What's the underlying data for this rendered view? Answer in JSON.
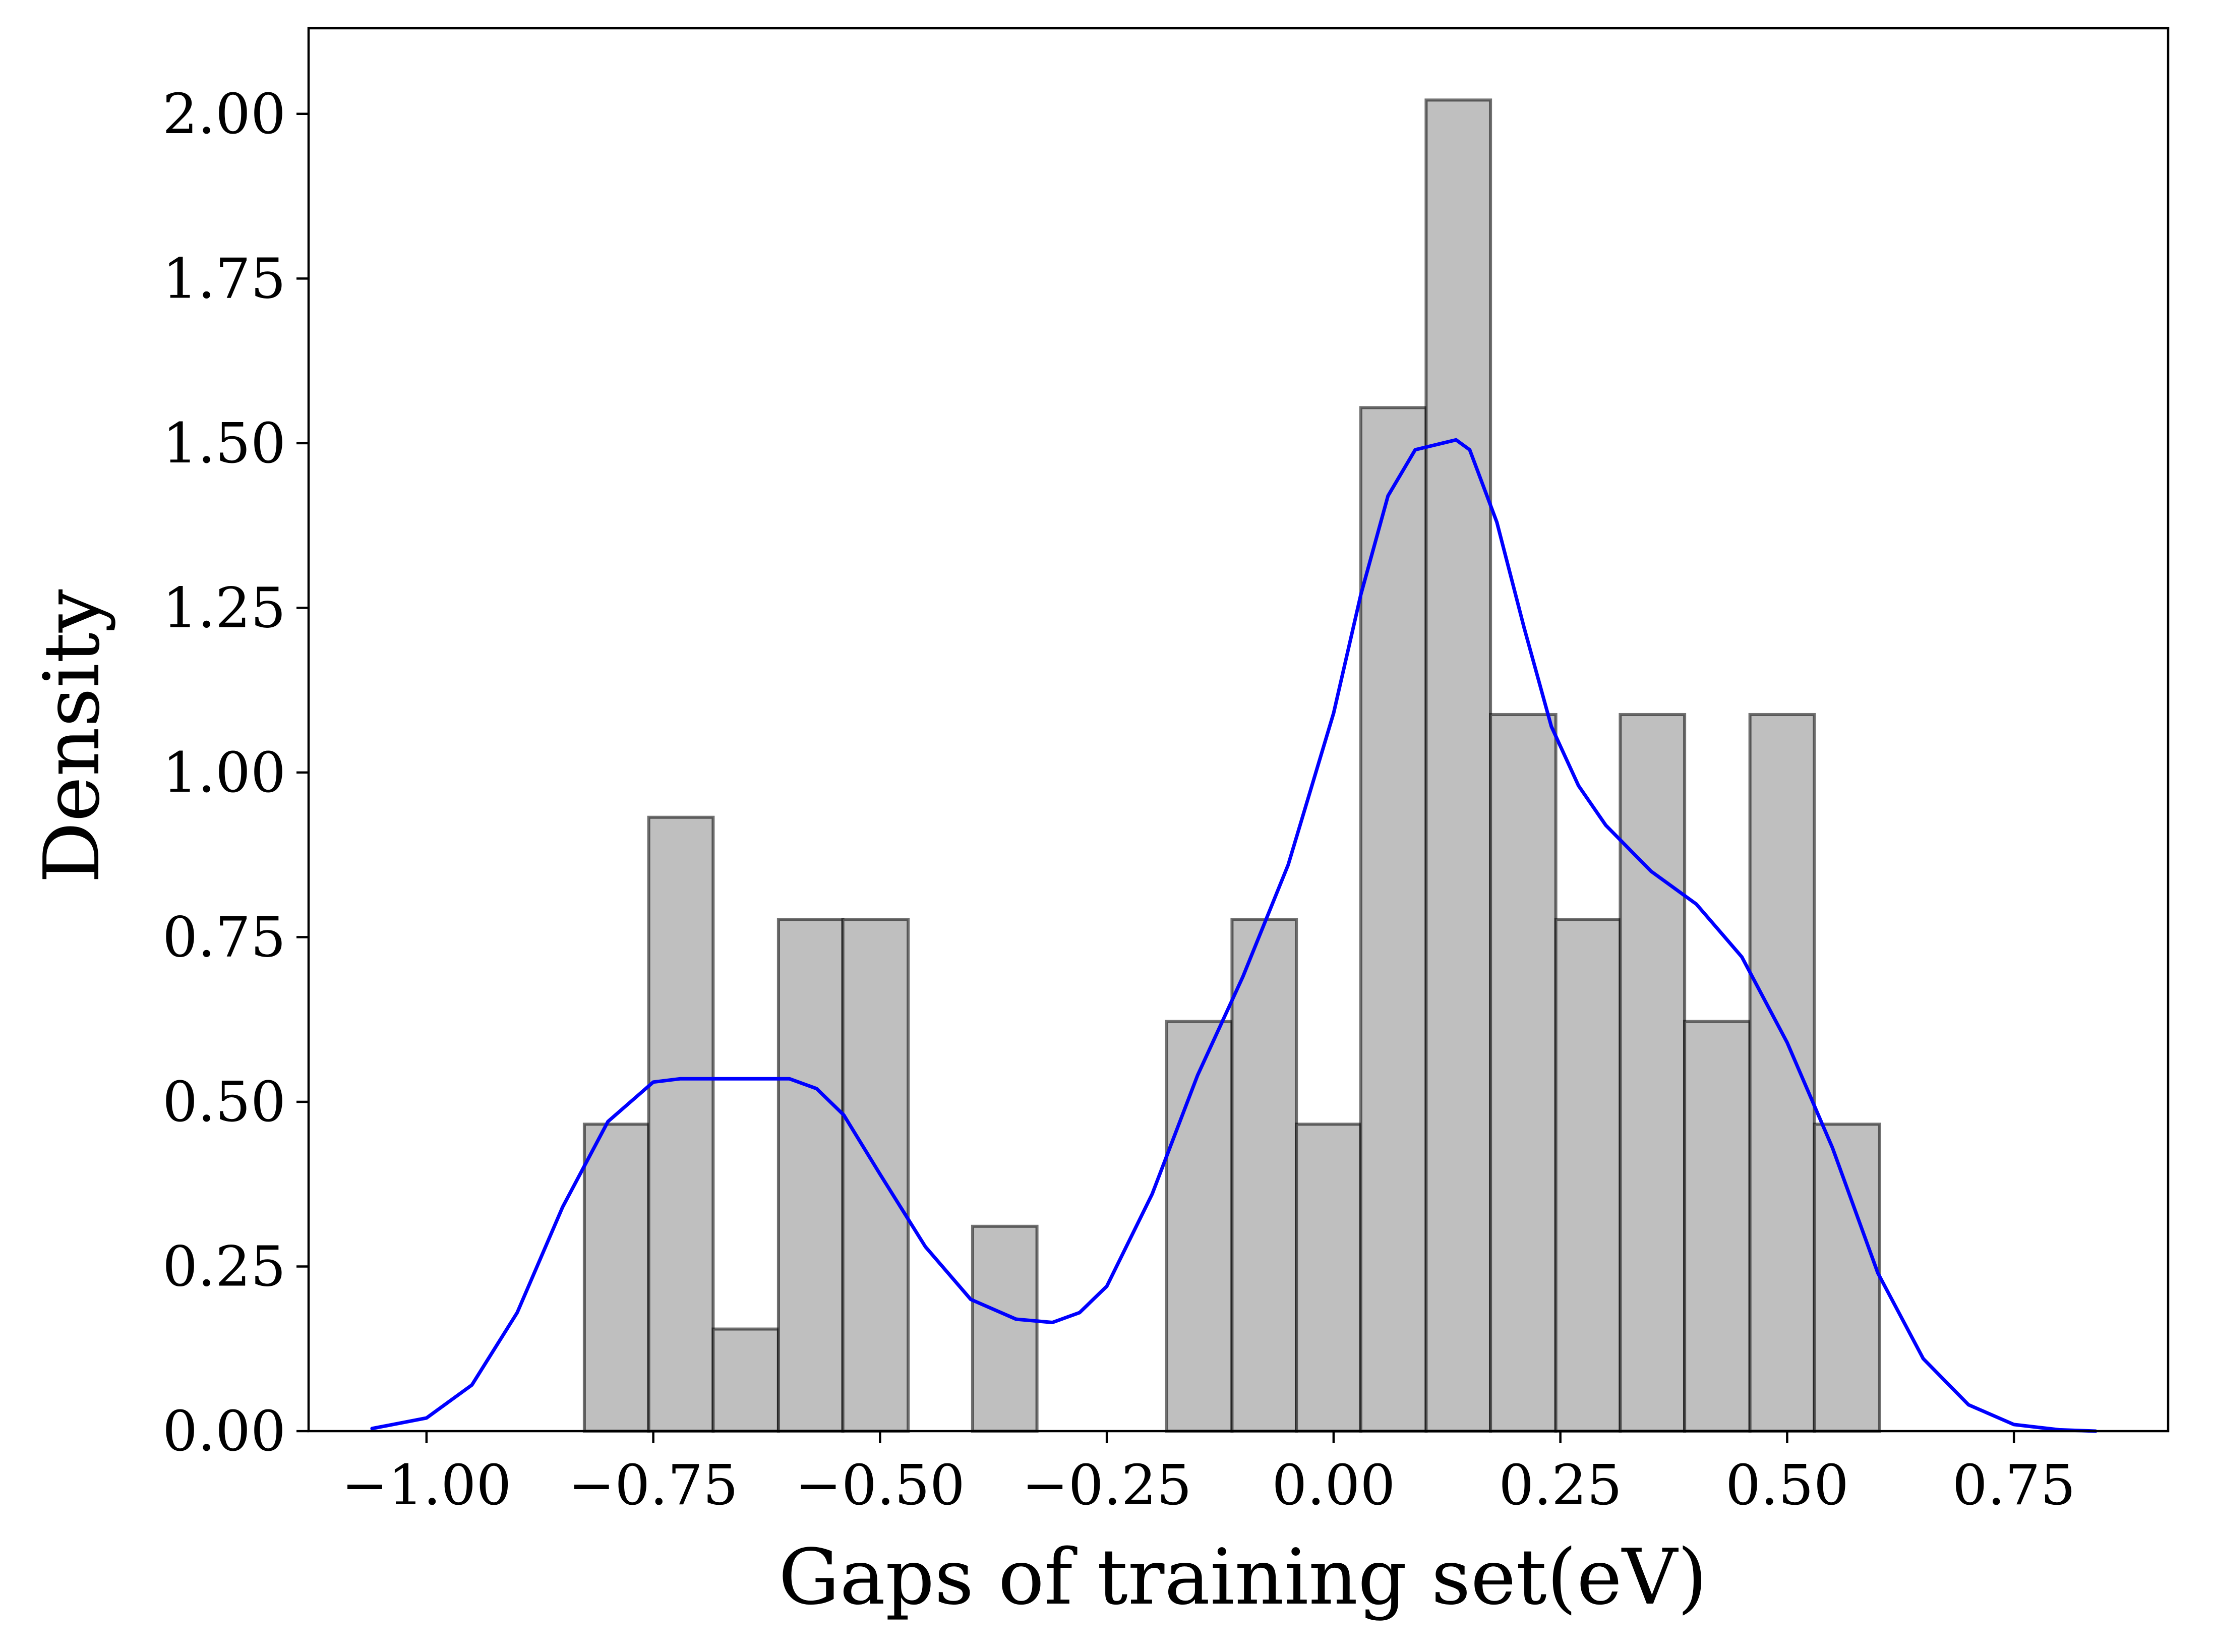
{
  "chart_data": {
    "type": "bar",
    "title": "",
    "xlabel": "Gaps of training set(eV)",
    "ylabel": "Density",
    "xlim": [
      -1.13,
      0.92
    ],
    "ylim": [
      0,
      2.13
    ],
    "xticks": [
      -1.0,
      -0.75,
      -0.5,
      -0.25,
      0.0,
      0.25,
      0.5,
      0.75
    ],
    "xtick_labels": [
      "−1.00",
      "−0.75",
      "−0.50",
      "−0.25",
      "0.00",
      "0.25",
      "0.50",
      "0.75"
    ],
    "yticks": [
      0.0,
      0.25,
      0.5,
      0.75,
      1.0,
      1.25,
      1.5,
      1.75,
      2.0
    ],
    "ytick_labels": [
      "0.00",
      "0.25",
      "0.50",
      "0.75",
      "1.00",
      "1.25",
      "1.50",
      "1.75",
      "2.00"
    ],
    "grid": false,
    "histogram": {
      "bins": [
        {
          "x0": -0.826,
          "x1": -0.755,
          "density": 0.466
        },
        {
          "x0": -0.755,
          "x1": -0.684,
          "density": 0.932
        },
        {
          "x0": -0.684,
          "x1": -0.612,
          "density": 0.155
        },
        {
          "x0": -0.612,
          "x1": -0.541,
          "density": 0.777
        },
        {
          "x0": -0.541,
          "x1": -0.469,
          "density": 0.777
        },
        {
          "x0": -0.469,
          "x1": -0.398,
          "density": 0.0
        },
        {
          "x0": -0.398,
          "x1": -0.327,
          "density": 0.311
        },
        {
          "x0": -0.327,
          "x1": -0.255,
          "density": 0.0
        },
        {
          "x0": -0.255,
          "x1": -0.184,
          "density": 0.0
        },
        {
          "x0": -0.184,
          "x1": -0.112,
          "density": 0.622
        },
        {
          "x0": -0.112,
          "x1": -0.041,
          "density": 0.777
        },
        {
          "x0": -0.041,
          "x1": 0.03,
          "density": 0.466
        },
        {
          "x0": 0.03,
          "x1": 0.102,
          "density": 1.554
        },
        {
          "x0": 0.102,
          "x1": 0.173,
          "density": 2.021
        },
        {
          "x0": 0.173,
          "x1": 0.245,
          "density": 1.088
        },
        {
          "x0": 0.245,
          "x1": 0.316,
          "density": 0.777
        },
        {
          "x0": 0.316,
          "x1": 0.387,
          "density": 1.088
        },
        {
          "x0": 0.387,
          "x1": 0.459,
          "density": 0.622
        },
        {
          "x0": 0.459,
          "x1": 0.53,
          "density": 1.088
        },
        {
          "x0": 0.53,
          "x1": 0.602,
          "density": 0.466
        }
      ],
      "fill_color": "#bfbfbf",
      "edge_color": "#000000"
    },
    "series": [
      {
        "type": "kde-line",
        "color": "#0000ff",
        "x": [
          -1.06,
          -1.0,
          -0.95,
          -0.9,
          -0.85,
          -0.8,
          -0.75,
          -0.72,
          -0.68,
          -0.65,
          -0.62,
          -0.6,
          -0.57,
          -0.54,
          -0.5,
          -0.45,
          -0.4,
          -0.35,
          -0.31,
          -0.28,
          -0.25,
          -0.2,
          -0.15,
          -0.1,
          -0.05,
          0.0,
          0.03,
          0.06,
          0.09,
          0.12,
          0.135,
          0.15,
          0.18,
          0.21,
          0.24,
          0.27,
          0.3,
          0.35,
          0.4,
          0.45,
          0.5,
          0.55,
          0.6,
          0.65,
          0.7,
          0.75,
          0.8,
          0.84
        ],
        "y": [
          0.004,
          0.02,
          0.07,
          0.18,
          0.34,
          0.47,
          0.53,
          0.535,
          0.535,
          0.535,
          0.535,
          0.535,
          0.52,
          0.48,
          0.39,
          0.28,
          0.2,
          0.17,
          0.165,
          0.18,
          0.22,
          0.36,
          0.54,
          0.69,
          0.86,
          1.09,
          1.27,
          1.42,
          1.49,
          1.5,
          1.505,
          1.49,
          1.38,
          1.22,
          1.07,
          0.98,
          0.92,
          0.85,
          0.8,
          0.72,
          0.59,
          0.43,
          0.24,
          0.11,
          0.04,
          0.01,
          0.002,
          0.0
        ]
      }
    ]
  }
}
